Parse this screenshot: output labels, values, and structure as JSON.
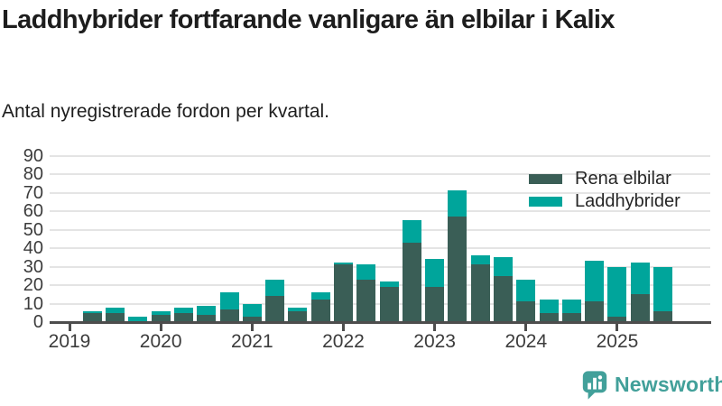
{
  "header": {
    "title": "Laddhybrider fortfarande vanligare än elbilar i Kalix",
    "subtitle": "Antal nyregistrerade fordon per kvartal."
  },
  "legend": {
    "items": [
      {
        "label": "Rena elbilar",
        "color": "#3a5e56"
      },
      {
        "label": "Laddhybrider",
        "color": "#00a59b"
      }
    ]
  },
  "footer": {
    "brand": "Newsworthy",
    "brand_color": "#42a09a",
    "brand_icon": "bar-chart-speech-bubble-icon"
  },
  "colors": {
    "rena_elbilar": "#3a5e56",
    "laddhybrider": "#00a59b",
    "axis": "#4d4d4d",
    "grid": "#e4e4e4",
    "text": "#1d1d1d",
    "tick_text": "#3c3c3c"
  },
  "chart_data": {
    "type": "bar",
    "stacked": true,
    "title": "Laddhybrider fortfarande vanligare än elbilar i Kalix",
    "subtitle": "Antal nyregistrerade fordon per kvartal.",
    "categories": [
      "2019Q1",
      "2019Q2",
      "2019Q3",
      "2019Q4",
      "2020Q1",
      "2020Q2",
      "2020Q3",
      "2020Q4",
      "2021Q1",
      "2021Q2",
      "2021Q3",
      "2021Q4",
      "2022Q1",
      "2022Q2",
      "2022Q3",
      "2022Q4",
      "2023Q1",
      "2023Q2",
      "2023Q3",
      "2023Q4",
      "2024Q1",
      "2024Q2",
      "2024Q3",
      "2024Q4",
      "2025Q1",
      "2025Q2",
      "2025Q3"
    ],
    "series": [
      {
        "name": "Rena elbilar",
        "color": "#3a5e56",
        "values": [
          0,
          5,
          5,
          0,
          4,
          5,
          4,
          7,
          3,
          14,
          6,
          12,
          31,
          23,
          19,
          43,
          19,
          57,
          31,
          25,
          11,
          5,
          5,
          11,
          3,
          15,
          6
        ]
      },
      {
        "name": "Laddhybrider",
        "color": "#00a59b",
        "values": [
          0,
          1,
          3,
          3,
          2,
          3,
          5,
          9,
          7,
          9,
          2,
          4,
          1,
          8,
          3,
          12,
          15,
          14,
          5,
          10,
          12,
          7,
          7,
          22,
          27,
          17,
          24
        ]
      }
    ],
    "xlabel": "",
    "ylabel": "",
    "ylim": [
      0,
      90
    ],
    "ytick_step": 10,
    "x_tick_labels": [
      "2019",
      "2020",
      "2021",
      "2022",
      "2023",
      "2024",
      "2025"
    ],
    "grid": true,
    "legend_position": "top-right"
  }
}
